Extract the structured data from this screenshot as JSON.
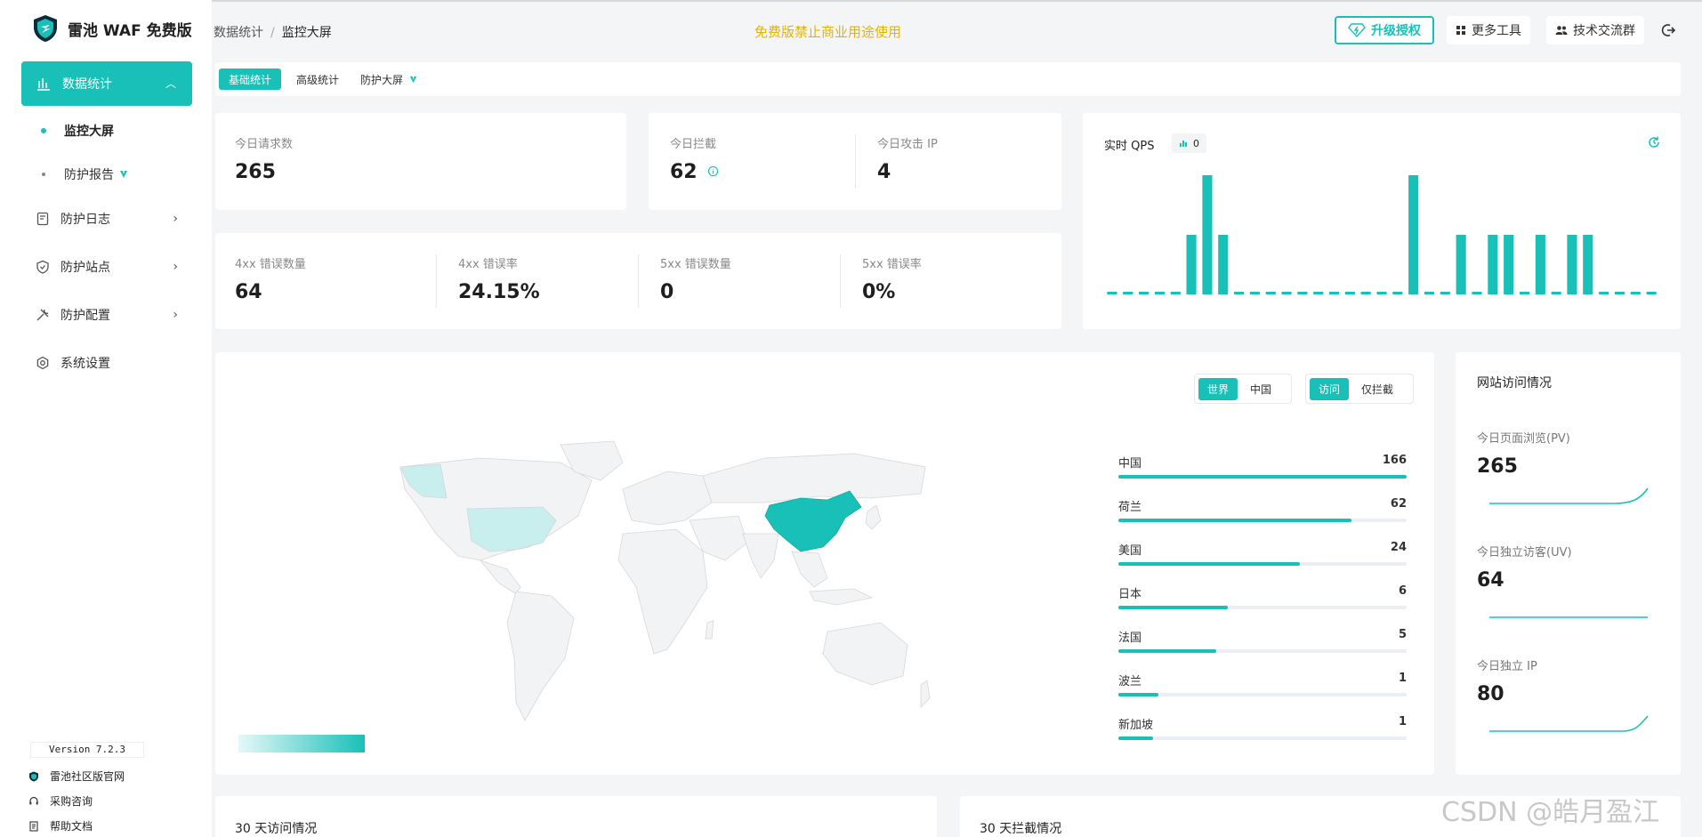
{
  "app": {
    "title": "雷池 WAF 免费版",
    "version": "Version 7.2.3",
    "accent": "#18c0b8"
  },
  "sidebar": {
    "active": {
      "label": "数据统计",
      "icon": "bar-chart-icon"
    },
    "sub_items": [
      {
        "label": "监控大屏",
        "active": true
      },
      {
        "label": "防护报告",
        "badge_icon": "shield-badge-icon"
      }
    ],
    "items": [
      {
        "label": "防护日志",
        "icon": "log-icon",
        "has_children": true
      },
      {
        "label": "防护站点",
        "icon": "shield-icon",
        "has_children": true
      },
      {
        "label": "防护配置",
        "icon": "tools-icon",
        "has_children": true
      },
      {
        "label": "系统设置",
        "icon": "gear-icon",
        "has_children": false
      }
    ],
    "footer_links": [
      {
        "label": "雷池社区版官网",
        "icon": "logo-icon"
      },
      {
        "label": "采购咨询",
        "icon": "headset-icon"
      },
      {
        "label": "帮助文档",
        "icon": "doc-icon"
      }
    ]
  },
  "header": {
    "breadcrumb": [
      "数据统计",
      "监控大屏"
    ],
    "breadcrumb_sep": "/",
    "notice": "免费版禁止商业用途使用",
    "upgrade_label": "升级授权",
    "more_tools": "更多工具",
    "community": "技术交流群"
  },
  "tabs": [
    {
      "label": "基础统计",
      "active": true
    },
    {
      "label": "高级统计"
    },
    {
      "label": "防护大屏"
    }
  ],
  "stats": {
    "requests": {
      "label": "今日请求数",
      "value": "265"
    },
    "blocked": {
      "label": "今日拦截",
      "value": "62"
    },
    "attack_ip": {
      "label": "今日攻击 IP",
      "value": "4"
    },
    "err4xx_count": {
      "label": "4xx 错误数量",
      "value": "64"
    },
    "err4xx_rate": {
      "label": "4xx 错误率",
      "value": "24.15%"
    },
    "err5xx_count": {
      "label": "5xx 错误数量",
      "value": "0"
    },
    "err5xx_rate": {
      "label": "5xx 错误率",
      "value": "0%"
    }
  },
  "qps": {
    "title": "实时 QPS",
    "current": "0"
  },
  "chart_data": {
    "type": "bar",
    "title": "实时 QPS",
    "values": [
      0,
      0,
      0,
      0,
      0,
      2,
      4,
      2,
      0,
      0,
      0,
      0,
      0,
      0,
      0,
      0,
      0,
      0,
      0,
      4,
      0,
      0,
      2,
      0,
      2,
      2,
      0,
      2,
      0,
      2,
      2,
      0,
      0,
      0,
      0
    ],
    "ylim": [
      0,
      4
    ]
  },
  "map": {
    "scope_toggle": [
      "世界",
      "中国"
    ],
    "scope_active": "世界",
    "mode_toggle": [
      "访问",
      "仅拦截"
    ],
    "mode_active": "访问",
    "countries": [
      {
        "name": "中国",
        "count": 166,
        "fraction": 1.0
      },
      {
        "name": "荷兰",
        "count": 62,
        "fraction": 0.81
      },
      {
        "name": "美国",
        "count": 24,
        "fraction": 0.63
      },
      {
        "name": "日本",
        "count": 6,
        "fraction": 0.38
      },
      {
        "name": "法国",
        "count": 5,
        "fraction": 0.34
      },
      {
        "name": "波兰",
        "count": 1,
        "fraction": 0.14
      },
      {
        "name": "新加坡",
        "count": 1,
        "fraction": 0.12
      }
    ]
  },
  "site_visits": {
    "title": "网站访问情况",
    "pv": {
      "label": "今日页面浏览(PV)",
      "value": "265"
    },
    "uv": {
      "label": "今日独立访客(UV)",
      "value": "64"
    },
    "ip": {
      "label": "今日独立 IP",
      "value": "80"
    }
  },
  "bottom": {
    "visits_30d": "30 天访问情况",
    "blocks_30d": "30 天拦截情况"
  },
  "watermark": "CSDN @皓月盈江"
}
